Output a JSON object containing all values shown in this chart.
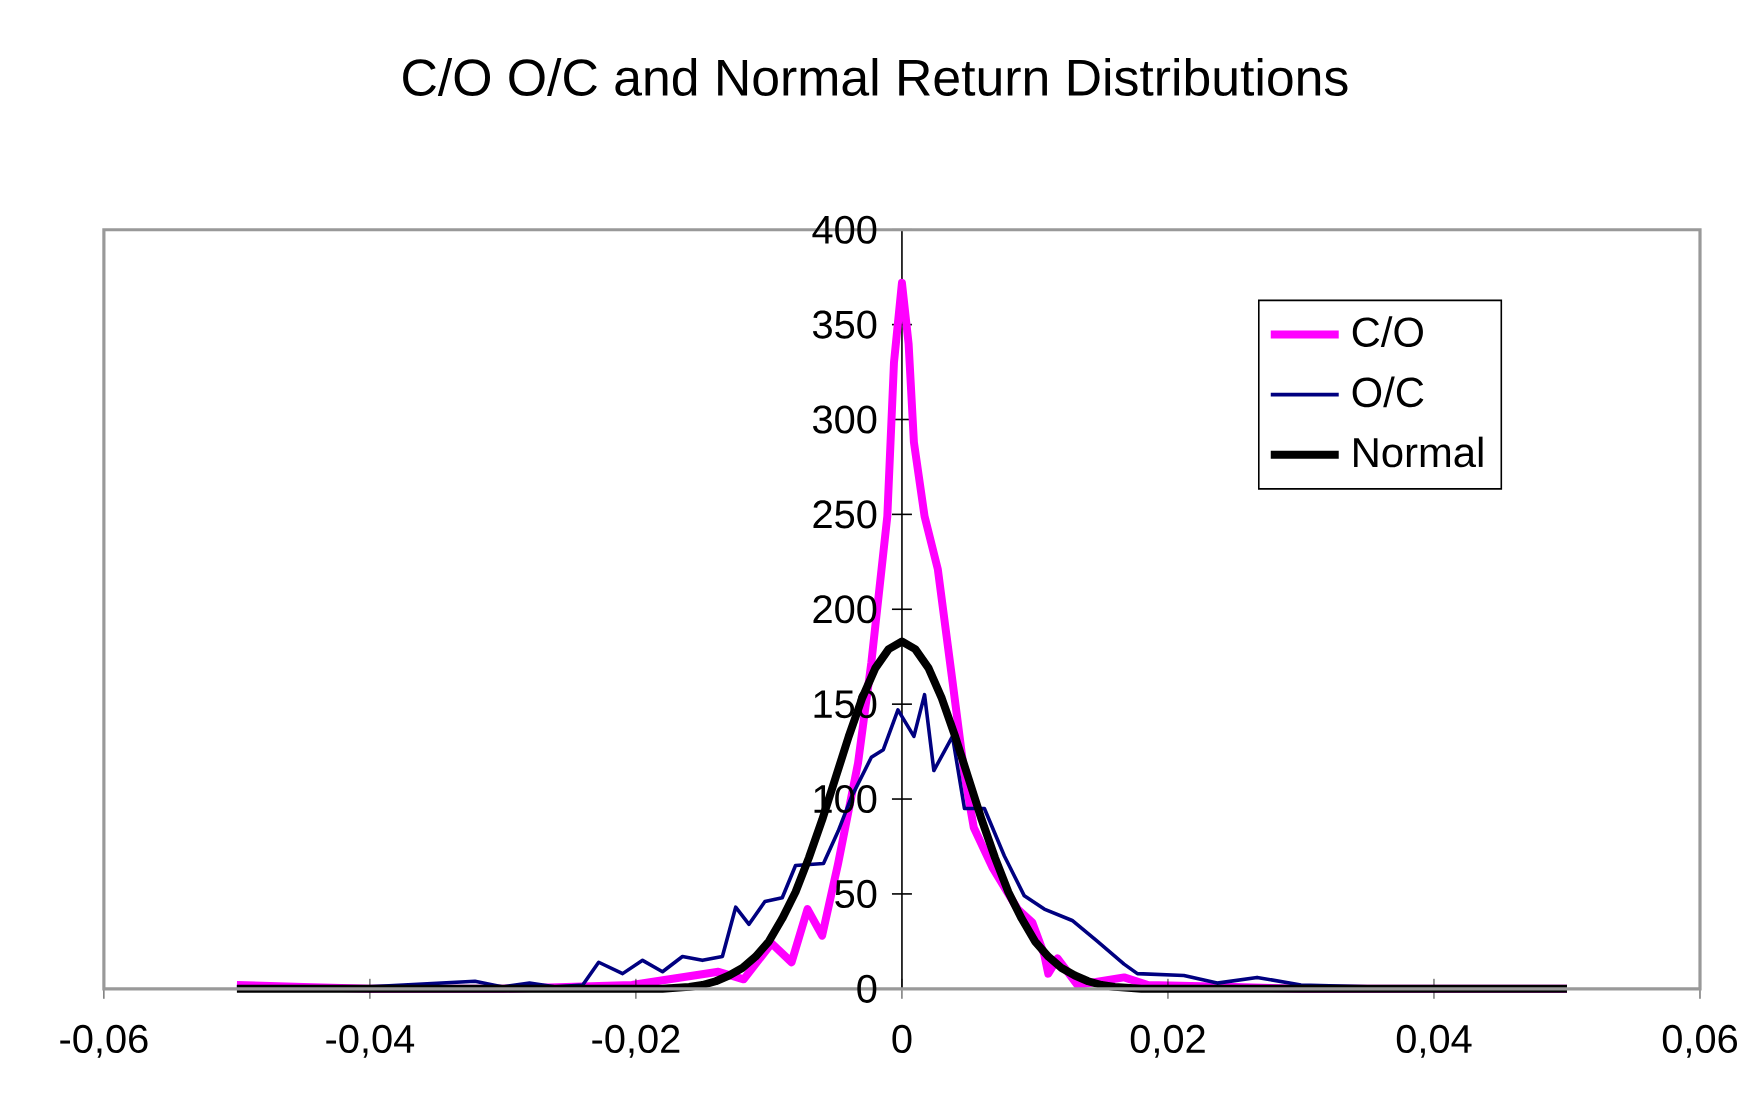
{
  "chart_data": {
    "type": "line",
    "title": "C/O O/C and Normal Return Distributions",
    "xlim": [
      -0.06,
      0.06
    ],
    "ylim": [
      0,
      400
    ],
    "xticks": [
      {
        "value": -0.06,
        "label": "-0,06"
      },
      {
        "value": -0.04,
        "label": "-0,04"
      },
      {
        "value": -0.02,
        "label": "-0,02"
      },
      0,
      {
        "value": 0.02,
        "label": "0,02"
      },
      {
        "value": 0.04,
        "label": "0,04"
      },
      {
        "value": 0.06,
        "label": "0,06"
      }
    ],
    "yticks": [
      0,
      50,
      100,
      150,
      200,
      250,
      300,
      350,
      400
    ],
    "grid": false,
    "legend": "top right",
    "marker": "none",
    "line_style": "solid",
    "series": [
      {
        "name": "C/O",
        "color": "#ff00ff",
        "x": [
          -0.05,
          -0.045,
          -0.04,
          -0.03,
          -0.0203,
          -0.0138,
          -0.0119,
          -0.0098,
          -0.0083,
          -0.0071,
          -0.006,
          -0.0048,
          -0.0033,
          -0.0023,
          -0.0011,
          -0.0006,
          0,
          0.0005,
          0.0009,
          0.0017,
          0.0027,
          0.0038,
          0.0047,
          0.0054,
          0.0068,
          0.0087,
          0.0098,
          0.0107,
          0.011,
          0.0117,
          0.0132,
          0.0167,
          0.0185,
          0.025,
          0.03,
          0.05
        ],
        "values": [
          2,
          1,
          0,
          0,
          2,
          9,
          5,
          24,
          14,
          42,
          28,
          66,
          119,
          172,
          249,
          330,
          372,
          340,
          288,
          249,
          221,
          162,
          113,
          85,
          64,
          42,
          35,
          18,
          8,
          16,
          2,
          6,
          2,
          1,
          0,
          0
        ]
      },
      {
        "name": "O/C",
        "color": "#000080",
        "x": [
          -0.05,
          -0.04,
          -0.0321,
          -0.03,
          -0.028,
          -0.026,
          -0.024,
          -0.0228,
          -0.021,
          -0.0195,
          -0.018,
          -0.0165,
          -0.015,
          -0.0135,
          -0.0125,
          -0.0115,
          -0.0103,
          -0.009,
          -0.008,
          -0.0059,
          -0.0048,
          -0.0038,
          -0.0023,
          -0.0014,
          -0.0003,
          0.0009,
          0.0017,
          0.0024,
          0.0038,
          0.0047,
          0.0062,
          0.0077,
          0.0092,
          0.0107,
          0.0128,
          0.0147,
          0.0167,
          0.0177,
          0.0212,
          0.0237,
          0.0267,
          0.03,
          0.035,
          0.04,
          0.05
        ],
        "values": [
          1,
          1,
          4,
          1,
          3,
          1,
          2,
          14,
          8,
          15,
          9,
          17,
          15,
          17,
          43,
          34,
          46,
          48,
          65,
          66,
          83,
          101,
          122,
          126,
          147,
          133,
          155,
          115,
          133,
          95,
          95,
          70,
          49,
          42,
          36,
          25,
          13,
          8,
          7,
          3,
          6,
          2,
          1,
          1,
          1
        ]
      },
      {
        "name": "Normal",
        "color": "#000000",
        "x": [
          -0.05,
          -0.03,
          -0.018,
          -0.016,
          -0.015,
          -0.014,
          -0.013,
          -0.012,
          -0.011,
          -0.01,
          -0.009,
          -0.008,
          -0.007,
          -0.006,
          -0.005,
          -0.004,
          -0.003,
          -0.002,
          -0.001,
          0,
          0.001,
          0.002,
          0.003,
          0.004,
          0.005,
          0.006,
          0.007,
          0.008,
          0.009,
          0.01,
          0.011,
          0.012,
          0.013,
          0.014,
          0.015,
          0.016,
          0.018,
          0.03,
          0.05
        ],
        "values": [
          0,
          0,
          0,
          1,
          2,
          4,
          7,
          11,
          17,
          25,
          37,
          51,
          69,
          89,
          111,
          133,
          153,
          169,
          179,
          183,
          179,
          169,
          153,
          133,
          111,
          89,
          69,
          51,
          37,
          25,
          17,
          11,
          7,
          4,
          2,
          1,
          0,
          0,
          0
        ]
      }
    ]
  }
}
